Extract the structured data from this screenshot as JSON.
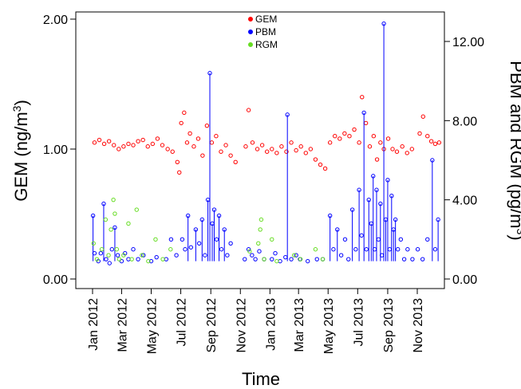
{
  "chart_data": {
    "type": "scatter",
    "title": "",
    "xlabel": "Time",
    "ylabel_left": "GEM (ng/m",
    "ylabel_left_sup": "3",
    "ylabel_left_close": ")",
    "ylabel_right": "PBM and RGM (pg/m",
    "ylabel_right_sup": "3",
    "ylabel_right_close": ")",
    "x_range": [
      "2012-01-01",
      "2013-12-20"
    ],
    "ylim_left": [
      0,
      2
    ],
    "ylim_right": [
      0,
      13.3
    ],
    "x_ticks": [
      {
        "date": "2012-01-01",
        "label": "Jan 2012"
      },
      {
        "date": "2012-03-01",
        "label": "Mar 2012"
      },
      {
        "date": "2012-05-01",
        "label": "May 2012"
      },
      {
        "date": "2012-07-01",
        "label": "Jul 2012"
      },
      {
        "date": "2012-09-01",
        "label": "Sep 2012"
      },
      {
        "date": "2012-11-01",
        "label": "Nov 2012"
      },
      {
        "date": "2013-01-01",
        "label": "Jan 2013"
      },
      {
        "date": "2013-03-01",
        "label": "Mar 2013"
      },
      {
        "date": "2013-05-01",
        "label": "May 2013"
      },
      {
        "date": "2013-07-01",
        "label": "Jul 2013"
      },
      {
        "date": "2013-09-01",
        "label": "Sep 2013"
      },
      {
        "date": "2013-11-01",
        "label": "Nov 2013"
      }
    ],
    "y_ticks_left": [
      {
        "value": 0,
        "label": "0.00"
      },
      {
        "value": 1,
        "label": "1.00"
      },
      {
        "value": 2,
        "label": "2.00"
      }
    ],
    "y_ticks_right": [
      {
        "value": 0,
        "label": "0.00"
      },
      {
        "value": 4,
        "label": "4.00"
      },
      {
        "value": 8,
        "label": "8.00"
      },
      {
        "value": 12,
        "label": "12.00"
      }
    ],
    "legend_position": "top-center",
    "series": [
      {
        "name": "GEM",
        "axis": "left",
        "color": "#ff0000",
        "points": [
          [
            "2012-01-05",
            1.05
          ],
          [
            "2012-01-15",
            1.07
          ],
          [
            "2012-01-25",
            1.04
          ],
          [
            "2012-02-04",
            1.06
          ],
          [
            "2012-02-14",
            1.03
          ],
          [
            "2012-02-24",
            1.0
          ],
          [
            "2012-03-05",
            1.02
          ],
          [
            "2012-03-15",
            1.04
          ],
          [
            "2012-03-25",
            1.03
          ],
          [
            "2012-04-04",
            1.06
          ],
          [
            "2012-04-14",
            1.07
          ],
          [
            "2012-04-24",
            1.02
          ],
          [
            "2012-05-04",
            1.04
          ],
          [
            "2012-05-14",
            1.08
          ],
          [
            "2012-05-24",
            1.03
          ],
          [
            "2012-06-04",
            1.0
          ],
          [
            "2012-06-14",
            0.98
          ],
          [
            "2012-06-24",
            0.9
          ],
          [
            "2012-06-28",
            0.82
          ],
          [
            "2012-07-02",
            1.2
          ],
          [
            "2012-07-08",
            1.28
          ],
          [
            "2012-07-14",
            1.05
          ],
          [
            "2012-07-20",
            1.12
          ],
          [
            "2012-07-28",
            1.02
          ],
          [
            "2012-08-06",
            1.08
          ],
          [
            "2012-08-15",
            0.95
          ],
          [
            "2012-08-24",
            1.18
          ],
          [
            "2012-09-03",
            1.05
          ],
          [
            "2012-09-12",
            1.1
          ],
          [
            "2012-09-22",
            0.98
          ],
          [
            "2012-10-02",
            1.03
          ],
          [
            "2012-10-12",
            0.95
          ],
          [
            "2012-10-22",
            0.9
          ],
          [
            "2012-11-12",
            1.02
          ],
          [
            "2012-11-18",
            1.3
          ],
          [
            "2012-11-26",
            1.05
          ],
          [
            "2012-12-06",
            1.0
          ],
          [
            "2012-12-16",
            1.03
          ],
          [
            "2012-12-26",
            0.98
          ],
          [
            "2013-01-05",
            1.0
          ],
          [
            "2013-01-15",
            0.97
          ],
          [
            "2013-01-25",
            1.02
          ],
          [
            "2013-02-04",
            0.98
          ],
          [
            "2013-02-14",
            1.05
          ],
          [
            "2013-02-24",
            0.99
          ],
          [
            "2013-03-06",
            1.02
          ],
          [
            "2013-03-16",
            0.97
          ],
          [
            "2013-03-26",
            1.0
          ],
          [
            "2013-04-05",
            0.92
          ],
          [
            "2013-04-15",
            0.88
          ],
          [
            "2013-04-25",
            0.85
          ],
          [
            "2013-05-05",
            1.05
          ],
          [
            "2013-05-15",
            1.1
          ],
          [
            "2013-05-25",
            1.08
          ],
          [
            "2013-06-04",
            1.12
          ],
          [
            "2013-06-14",
            1.1
          ],
          [
            "2013-06-24",
            1.15
          ],
          [
            "2013-07-04",
            1.05
          ],
          [
            "2013-07-10",
            1.4
          ],
          [
            "2013-07-18",
            1.2
          ],
          [
            "2013-07-26",
            1.02
          ],
          [
            "2013-08-03",
            1.1
          ],
          [
            "2013-08-10",
            0.92
          ],
          [
            "2013-08-17",
            1.05
          ],
          [
            "2013-08-24",
            1.0
          ],
          [
            "2013-09-02",
            1.08
          ],
          [
            "2013-09-11",
            1.0
          ],
          [
            "2013-09-20",
            0.98
          ],
          [
            "2013-10-01",
            1.02
          ],
          [
            "2013-10-11",
            0.97
          ],
          [
            "2013-10-21",
            1.0
          ],
          [
            "2013-11-06",
            1.12
          ],
          [
            "2013-11-13",
            1.25
          ],
          [
            "2013-11-22",
            1.1
          ],
          [
            "2013-11-30",
            1.06
          ],
          [
            "2013-12-08",
            1.04
          ],
          [
            "2013-12-16",
            1.05
          ]
        ]
      },
      {
        "name": "PBM",
        "axis": "right",
        "color": "#0000ff",
        "points": [
          [
            "2012-01-02",
            3.2
          ],
          [
            "2012-01-05",
            1.3
          ],
          [
            "2012-01-13",
            0.9
          ],
          [
            "2012-01-18",
            1.3
          ],
          [
            "2012-01-24",
            3.8
          ],
          [
            "2012-01-29",
            1.0
          ],
          [
            "2012-02-05",
            0.8
          ],
          [
            "2012-02-10",
            1.5
          ],
          [
            "2012-02-16",
            2.6
          ],
          [
            "2012-02-22",
            1.2
          ],
          [
            "2012-03-01",
            0.9
          ],
          [
            "2012-03-08",
            1.3
          ],
          [
            "2012-03-15",
            1.0
          ],
          [
            "2012-03-25",
            1.5
          ],
          [
            "2012-04-04",
            1.0
          ],
          [
            "2012-04-15",
            1.2
          ],
          [
            "2012-05-01",
            0.9
          ],
          [
            "2012-05-12",
            1.1
          ],
          [
            "2012-06-01",
            1.0
          ],
          [
            "2012-06-11",
            2.0
          ],
          [
            "2012-06-22",
            1.2
          ],
          [
            "2012-07-04",
            2.0
          ],
          [
            "2012-07-10",
            1.5
          ],
          [
            "2012-07-16",
            3.2
          ],
          [
            "2012-07-22",
            1.6
          ],
          [
            "2012-08-01",
            2.5
          ],
          [
            "2012-08-08",
            1.8
          ],
          [
            "2012-08-14",
            3.0
          ],
          [
            "2012-08-20",
            1.2
          ],
          [
            "2012-08-26",
            4.0
          ],
          [
            "2012-08-30",
            10.4
          ],
          [
            "2012-09-04",
            2.8
          ],
          [
            "2012-09-08",
            3.5
          ],
          [
            "2012-09-13",
            2.0
          ],
          [
            "2012-09-18",
            3.2
          ],
          [
            "2012-09-23",
            1.5
          ],
          [
            "2012-09-29",
            2.5
          ],
          [
            "2012-10-05",
            1.2
          ],
          [
            "2012-10-12",
            1.8
          ],
          [
            "2012-11-10",
            1.0
          ],
          [
            "2012-11-18",
            1.5
          ],
          [
            "2012-11-25",
            1.2
          ],
          [
            "2012-12-02",
            1.0
          ],
          [
            "2012-12-10",
            1.4
          ],
          [
            "2012-12-20",
            1.0
          ],
          [
            "2013-01-05",
            1.0
          ],
          [
            "2013-01-12",
            1.3
          ],
          [
            "2013-01-22",
            0.9
          ],
          [
            "2013-02-02",
            1.1
          ],
          [
            "2013-02-06",
            8.3
          ],
          [
            "2013-02-14",
            1.0
          ],
          [
            "2013-02-24",
            1.2
          ],
          [
            "2013-03-04",
            1.0
          ],
          [
            "2013-03-20",
            0.9
          ],
          [
            "2013-04-08",
            1.0
          ],
          [
            "2013-04-20",
            1.0
          ],
          [
            "2013-05-05",
            3.2
          ],
          [
            "2013-05-12",
            1.5
          ],
          [
            "2013-05-20",
            2.5
          ],
          [
            "2013-05-28",
            1.2
          ],
          [
            "2013-06-05",
            2.0
          ],
          [
            "2013-06-12",
            1.0
          ],
          [
            "2013-06-20",
            3.5
          ],
          [
            "2013-06-27",
            1.5
          ],
          [
            "2013-07-04",
            4.5
          ],
          [
            "2013-07-09",
            2.2
          ],
          [
            "2013-07-14",
            8.4
          ],
          [
            "2013-07-19",
            1.5
          ],
          [
            "2013-07-24",
            4.0
          ],
          [
            "2013-07-29",
            2.8
          ],
          [
            "2013-08-02",
            5.2
          ],
          [
            "2013-08-05",
            1.5
          ],
          [
            "2013-08-09",
            4.5
          ],
          [
            "2013-08-13",
            2.0
          ],
          [
            "2013-08-17",
            3.8
          ],
          [
            "2013-08-20",
            1.2
          ],
          [
            "2013-08-24",
            12.9
          ],
          [
            "2013-08-28",
            3.0
          ],
          [
            "2013-09-01",
            5.0
          ],
          [
            "2013-09-05",
            1.5
          ],
          [
            "2013-09-09",
            4.2
          ],
          [
            "2013-09-13",
            2.5
          ],
          [
            "2013-09-17",
            3.0
          ],
          [
            "2013-09-22",
            1.5
          ],
          [
            "2013-09-28",
            2.0
          ],
          [
            "2013-10-05",
            1.0
          ],
          [
            "2013-10-12",
            1.5
          ],
          [
            "2013-10-22",
            1.0
          ],
          [
            "2013-11-02",
            1.5
          ],
          [
            "2013-11-12",
            1.0
          ],
          [
            "2013-11-22",
            2.0
          ],
          [
            "2013-12-02",
            6.0
          ],
          [
            "2013-12-08",
            1.5
          ],
          [
            "2013-12-14",
            3.0
          ]
        ]
      },
      {
        "name": "RGM",
        "axis": "right",
        "color": "#66dd22",
        "points": [
          [
            "2012-01-03",
            1.8
          ],
          [
            "2012-01-10",
            1.0
          ],
          [
            "2012-01-20",
            1.5
          ],
          [
            "2012-01-28",
            3.0
          ],
          [
            "2012-02-03",
            1.2
          ],
          [
            "2012-02-08",
            2.5
          ],
          [
            "2012-02-13",
            4.0
          ],
          [
            "2012-02-16",
            3.3
          ],
          [
            "2012-02-20",
            1.5
          ],
          [
            "2012-02-25",
            1.0
          ],
          [
            "2012-03-05",
            1.2
          ],
          [
            "2012-03-15",
            2.8
          ],
          [
            "2012-03-22",
            1.0
          ],
          [
            "2012-04-01",
            3.5
          ],
          [
            "2012-04-12",
            1.2
          ],
          [
            "2012-04-25",
            0.9
          ],
          [
            "2012-05-10",
            2.0
          ],
          [
            "2012-05-25",
            1.0
          ],
          [
            "2012-06-10",
            1.5
          ],
          [
            "2012-11-20",
            1.4
          ],
          [
            "2012-12-08",
            1.8
          ],
          [
            "2012-12-12",
            2.5
          ],
          [
            "2012-12-14",
            3.0
          ],
          [
            "2012-12-20",
            1.0
          ],
          [
            "2013-01-05",
            2.0
          ],
          [
            "2013-01-15",
            0.9
          ],
          [
            "2013-02-20",
            1.2
          ],
          [
            "2013-03-05",
            1.0
          ],
          [
            "2013-04-05",
            1.5
          ],
          [
            "2013-04-20",
            1.0
          ]
        ]
      }
    ]
  }
}
